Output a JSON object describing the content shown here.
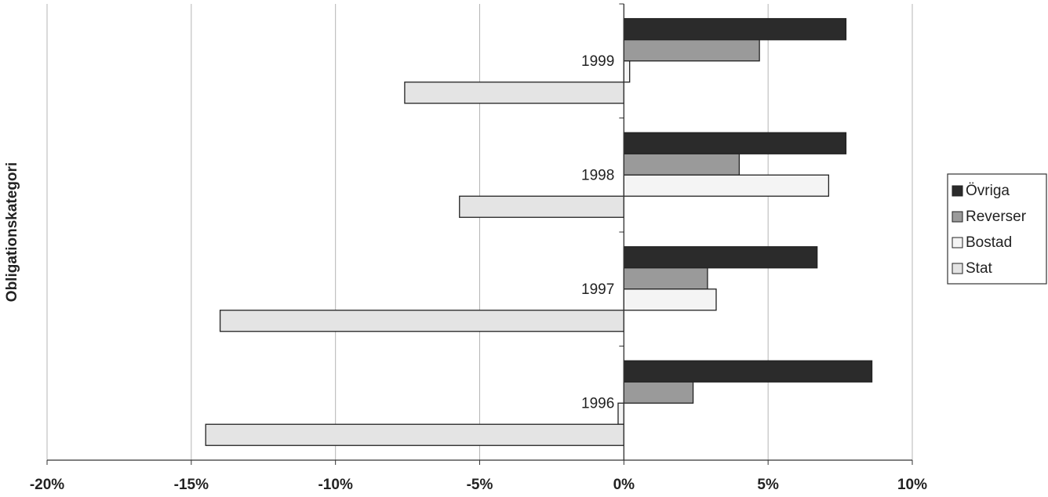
{
  "chart_data": {
    "type": "bar",
    "orientation": "horizontal",
    "y_label": "Obligationskategori",
    "categories": [
      "1996",
      "1997",
      "1998",
      "1999"
    ],
    "series": [
      {
        "name": "Övriga",
        "color": "#2b2b2b",
        "values": [
          8.6,
          6.7,
          7.7,
          7.7
        ]
      },
      {
        "name": "Reverser",
        "color": "#9a9a9a",
        "values": [
          2.4,
          2.9,
          4.0,
          4.7
        ]
      },
      {
        "name": "Bostad",
        "color": "#f4f4f4",
        "values": [
          -0.2,
          3.2,
          7.1,
          0.2
        ]
      },
      {
        "name": "Stat",
        "color": "#e4e4e4",
        "values": [
          -14.5,
          -14.0,
          -5.7,
          -7.6
        ]
      }
    ],
    "xlim": [
      -20,
      10
    ],
    "xticks": [
      {
        "value": -20,
        "label": "-20%"
      },
      {
        "value": -15,
        "label": "-15%"
      },
      {
        "value": -10,
        "label": "-10%"
      },
      {
        "value": -5,
        "label": "-5%"
      },
      {
        "value": 0,
        "label": "0%"
      },
      {
        "value": 5,
        "label": "5%"
      },
      {
        "value": 10,
        "label": "10%"
      }
    ],
    "grid": true,
    "legend": "right"
  }
}
